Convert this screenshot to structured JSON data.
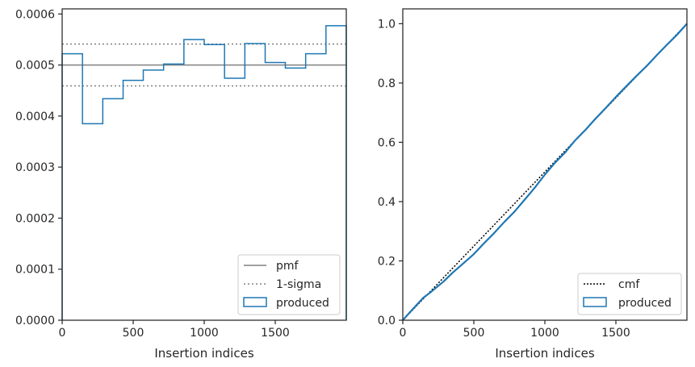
{
  "colors": {
    "produced": "#1f77b4",
    "pmf": "#808080",
    "sigma": "#808080",
    "cmf": "#000000",
    "frame": "#262626"
  },
  "chart_data": [
    {
      "type": "line",
      "xlabel": "Insertion indices",
      "xlim": [
        0,
        2000
      ],
      "ylim": [
        0,
        0.00061
      ],
      "x_ticks": [
        0,
        500,
        1000,
        1500
      ],
      "x_tick_labels": [
        "0",
        "500",
        "1000",
        "1500"
      ],
      "y_ticks": [
        0,
        0.0001,
        0.0002,
        0.0003,
        0.0004,
        0.0005,
        0.0006
      ],
      "y_tick_labels": [
        "0.0000",
        "0.0001",
        "0.0002",
        "0.0003",
        "0.0004",
        "0.0005",
        "0.0006"
      ],
      "pmf": 0.0005,
      "sigma_upper": 0.000541,
      "sigma_lower": 0.000459,
      "bin_edges": [
        0,
        143,
        286,
        429,
        571,
        714,
        857,
        1000,
        1143,
        1286,
        1429,
        1571,
        1714,
        1857,
        2000
      ],
      "produced": [
        0.000522,
        0.000385,
        0.000434,
        0.00047,
        0.00049,
        0.000502,
        0.00055,
        0.00054,
        0.000474,
        0.000542,
        0.000505,
        0.000494,
        0.000522,
        0.000577
      ],
      "legend": {
        "position": "lower-right",
        "entries": [
          "pmf",
          "1-sigma",
          "produced"
        ]
      }
    },
    {
      "type": "line",
      "xlabel": "Insertion indices",
      "xlim": [
        0,
        2000
      ],
      "ylim": [
        0,
        1.05
      ],
      "x_ticks": [
        0,
        500,
        1000,
        1500
      ],
      "x_tick_labels": [
        "0",
        "500",
        "1000",
        "1500"
      ],
      "y_ticks": [
        0,
        0.2,
        0.4,
        0.6,
        0.8,
        1.0
      ],
      "y_tick_labels": [
        "0.0",
        "0.2",
        "0.4",
        "0.6",
        "0.8",
        "1.0"
      ],
      "cmf": {
        "x": [
          0,
          2000
        ],
        "y": [
          0,
          1.0
        ]
      },
      "produced": {
        "x": [
          0,
          50,
          143,
          200,
          286,
          350,
          429,
          500,
          571,
          643,
          714,
          786,
          857,
          929,
          1000,
          1071,
          1143,
          1214,
          1286,
          1357,
          1429,
          1500,
          1571,
          1643,
          1714,
          1786,
          1857,
          1929,
          2000
        ],
        "y": [
          0,
          0.027,
          0.075,
          0.096,
          0.13,
          0.16,
          0.193,
          0.223,
          0.259,
          0.294,
          0.331,
          0.366,
          0.406,
          0.447,
          0.491,
          0.531,
          0.566,
          0.607,
          0.642,
          0.68,
          0.716,
          0.753,
          0.788,
          0.823,
          0.856,
          0.893,
          0.928,
          0.962,
          1.0
        ]
      },
      "legend": {
        "position": "lower-right",
        "entries": [
          "cmf",
          "produced"
        ]
      }
    }
  ]
}
